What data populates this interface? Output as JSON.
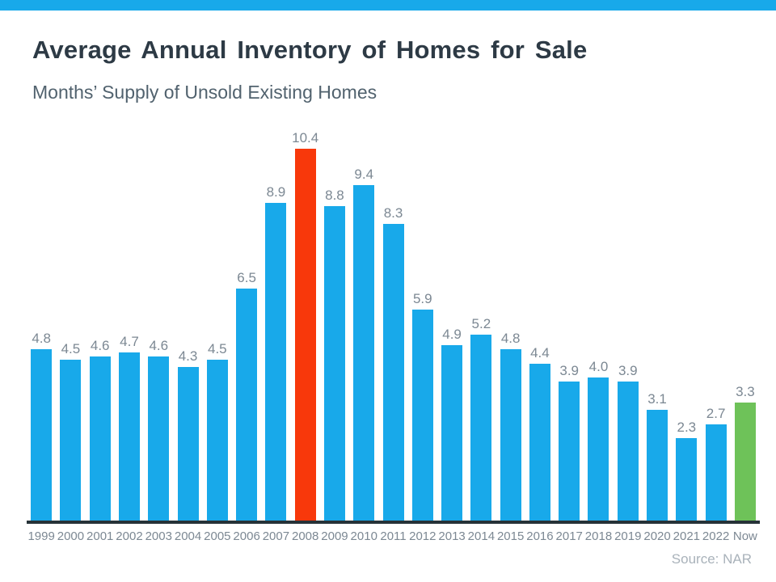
{
  "page": {
    "title": "Average Annual Inventory of Homes for Sale",
    "subtitle": "Months’ Supply of Unsold Existing Homes",
    "source": "Source: NAR"
  },
  "colors": {
    "header_strip": "#18A9EA",
    "bar_default": "#18A9EA",
    "bar_highlight_2008": "#F8380B",
    "bar_highlight_now": "#6EC259",
    "axis_line": "#263238",
    "title_text": "#2D3A45",
    "subtitle_text": "#51626E",
    "label_text": "#7C8893",
    "source_text": "#A9B2BA"
  },
  "chart_data": {
    "type": "bar",
    "title": "Average Annual Inventory of Homes for Sale",
    "subtitle": "Months’ Supply of Unsold Existing Homes",
    "xlabel": "",
    "ylabel": "Months' Supply",
    "ylim": [
      0,
      10.9
    ],
    "grid": false,
    "legend": false,
    "value_labels_shown": true,
    "source": "Source: NAR",
    "categories": [
      "1999",
      "2000",
      "2001",
      "2002",
      "2003",
      "2004",
      "2005",
      "2006",
      "2007",
      "2008",
      "2009",
      "2010",
      "2011",
      "2012",
      "2013",
      "2014",
      "2015",
      "2016",
      "2017",
      "2018",
      "2019",
      "2020",
      "2021",
      "2022",
      "Now"
    ],
    "values": [
      4.8,
      4.5,
      4.6,
      4.7,
      4.6,
      4.3,
      4.5,
      6.5,
      8.9,
      10.4,
      8.8,
      9.4,
      8.3,
      5.9,
      4.9,
      5.2,
      4.8,
      4.4,
      3.9,
      4.0,
      3.9,
      3.1,
      2.3,
      2.7,
      3.3
    ],
    "value_labels": [
      "4.8",
      "4.5",
      "4.6",
      "4.7",
      "4.6",
      "4.3",
      "4.5",
      "6.5",
      "8.9",
      "10.4",
      "8.8",
      "9.4",
      "8.3",
      "5.9",
      "4.9",
      "5.2",
      "4.8",
      "4.4",
      "3.9",
      "4.0",
      "3.9",
      "3.1",
      "2.3",
      "2.7",
      "3.3"
    ],
    "bar_colors": [
      "#18A9EA",
      "#18A9EA",
      "#18A9EA",
      "#18A9EA",
      "#18A9EA",
      "#18A9EA",
      "#18A9EA",
      "#18A9EA",
      "#18A9EA",
      "#F8380B",
      "#18A9EA",
      "#18A9EA",
      "#18A9EA",
      "#18A9EA",
      "#18A9EA",
      "#18A9EA",
      "#18A9EA",
      "#18A9EA",
      "#18A9EA",
      "#18A9EA",
      "#18A9EA",
      "#18A9EA",
      "#18A9EA",
      "#18A9EA",
      "#6EC259"
    ]
  }
}
